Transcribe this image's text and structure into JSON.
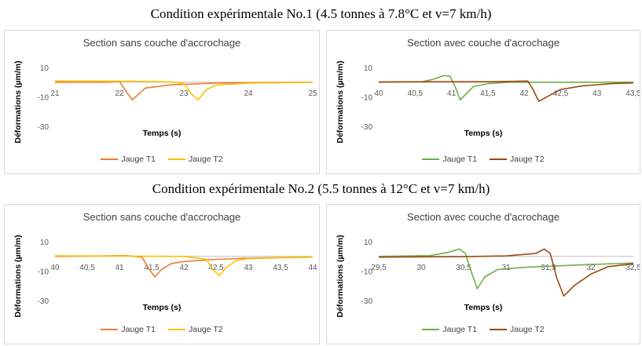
{
  "conditions": [
    {
      "title": "Condition expérimentale No.1 (4.5 tonnes à 7.8°C et v=7 km/h)"
    },
    {
      "title": "Condition expérimentale No.2 (5.5 tonnes à 12°C et v=7 km/h)"
    }
  ],
  "colors": {
    "orange": "#ed7d31",
    "yellow": "#ffc000",
    "green": "#70ad47",
    "brown": "#9e480e",
    "gray_line": "#c0c0c0"
  },
  "chart_data": [
    {
      "type": "line",
      "title": "Section sans couche d'accrochage",
      "xlabel": "Temps (s)",
      "ylabel": "Déformations (µm/m)",
      "xlim": [
        21,
        25
      ],
      "ylim": [
        -30,
        10
      ],
      "xticks": [
        "21",
        "22",
        "23",
        "24",
        "25"
      ],
      "yticks": [
        "10",
        "-10",
        "-30"
      ],
      "legend_position": "bottom",
      "series": [
        {
          "name": "Jauge T1",
          "color": "orange",
          "points": [
            [
              21,
              0
            ],
            [
              21.8,
              0
            ],
            [
              22.0,
              0.5
            ],
            [
              22.1,
              -6
            ],
            [
              22.2,
              -12
            ],
            [
              22.3,
              -8
            ],
            [
              22.4,
              -4
            ],
            [
              22.8,
              -1.8
            ],
            [
              23.5,
              -0.6
            ],
            [
              24.2,
              -0.3
            ],
            [
              25,
              0
            ]
          ]
        },
        {
          "name": "Jauge T2",
          "color": "yellow",
          "points": [
            [
              21,
              0.8
            ],
            [
              22.2,
              0.6
            ],
            [
              22.8,
              0.2
            ],
            [
              23.0,
              -1
            ],
            [
              23.12,
              -8
            ],
            [
              23.22,
              -12
            ],
            [
              23.35,
              -5
            ],
            [
              23.5,
              -2
            ],
            [
              24,
              -0.6
            ],
            [
              25,
              0
            ]
          ]
        }
      ]
    },
    {
      "type": "line",
      "title": "Section avec couche d'acrochage",
      "xlabel": "Temps (s)",
      "ylabel": "Déformations (µm/m)",
      "xlim": [
        40,
        43.5
      ],
      "ylim": [
        -30,
        10
      ],
      "xticks": [
        "40",
        "40,5",
        "41",
        "41,5",
        "42",
        "42,5",
        "43",
        "43,5"
      ],
      "yticks": [
        "10",
        "-10",
        "-30"
      ],
      "legend_position": "bottom",
      "series": [
        {
          "name": "Jauge T1",
          "color": "green",
          "points": [
            [
              40,
              0
            ],
            [
              40.6,
              0.3
            ],
            [
              40.75,
              2
            ],
            [
              40.9,
              4.5
            ],
            [
              40.98,
              4
            ],
            [
              41.05,
              -3
            ],
            [
              41.12,
              -12
            ],
            [
              41.2,
              -8
            ],
            [
              41.3,
              -3
            ],
            [
              41.5,
              -1
            ],
            [
              41.8,
              0
            ],
            [
              43.5,
              0
            ]
          ]
        },
        {
          "name": "Jauge T2",
          "color": "brown",
          "points": [
            [
              40,
              0.2
            ],
            [
              41.0,
              0.3
            ],
            [
              41.5,
              0.3
            ],
            [
              41.9,
              0.6
            ],
            [
              42.05,
              0.8
            ],
            [
              42.12,
              -5
            ],
            [
              42.2,
              -13
            ],
            [
              42.35,
              -9
            ],
            [
              42.5,
              -5
            ],
            [
              42.8,
              -2.5
            ],
            [
              43.2,
              -1
            ],
            [
              43.5,
              -0.5
            ]
          ]
        }
      ]
    },
    {
      "type": "line",
      "title": "Section sans couche d'accrochage",
      "xlabel": "Temps (s)",
      "ylabel": "Déformations (µm/m)",
      "xlim": [
        40,
        44
      ],
      "ylim": [
        -30,
        10
      ],
      "xticks": [
        "40",
        "40,5",
        "41",
        "41,5",
        "42",
        "42,5",
        "43",
        "43,5",
        "44"
      ],
      "yticks": [
        "10",
        "-10",
        "-30"
      ],
      "legend_position": "bottom",
      "series": [
        {
          "name": "Jauge T1",
          "color": "orange",
          "points": [
            [
              40,
              0
            ],
            [
              41.1,
              0.5
            ],
            [
              41.35,
              -0.5
            ],
            [
              41.45,
              -8
            ],
            [
              41.55,
              -14
            ],
            [
              41.65,
              -9
            ],
            [
              41.8,
              -5
            ],
            [
              42,
              -3.5
            ],
            [
              42.5,
              -2
            ],
            [
              43,
              -1.2
            ],
            [
              44,
              -0.5
            ]
          ]
        },
        {
          "name": "Jauge T2",
          "color": "yellow",
          "points": [
            [
              40,
              0.4
            ],
            [
              41,
              0.2
            ],
            [
              42,
              0
            ],
            [
              42.35,
              -2
            ],
            [
              42.45,
              -9
            ],
            [
              42.55,
              -13
            ],
            [
              42.65,
              -8
            ],
            [
              42.8,
              -3
            ],
            [
              43,
              -1.5
            ],
            [
              44,
              -0.5
            ]
          ]
        }
      ]
    },
    {
      "type": "line",
      "title": "Section avec couche d'acrochage",
      "xlabel": "Temps (s)",
      "ylabel": "Déformations (µm/m)",
      "xlim": [
        29.5,
        32.5
      ],
      "ylim": [
        -30,
        10
      ],
      "xticks": [
        "29,5",
        "30",
        "30,5",
        "31",
        "31,5",
        "32",
        "32,5"
      ],
      "yticks": [
        "10",
        "-10",
        "-30"
      ],
      "legend_position": "bottom",
      "series": [
        {
          "name": "Jauge T1",
          "color": "green",
          "points": [
            [
              29.5,
              0
            ],
            [
              30.1,
              0.5
            ],
            [
              30.3,
              2.5
            ],
            [
              30.45,
              5
            ],
            [
              30.52,
              2
            ],
            [
              30.6,
              -12
            ],
            [
              30.66,
              -22
            ],
            [
              30.75,
              -14
            ],
            [
              30.9,
              -9
            ],
            [
              31.2,
              -7.5
            ],
            [
              31.6,
              -6.5
            ],
            [
              32,
              -5.5
            ],
            [
              32.5,
              -4.5
            ]
          ]
        },
        {
          "name": "Jauge T2",
          "color": "brown",
          "points": [
            [
              29.5,
              -0.5
            ],
            [
              30.5,
              -0.2
            ],
            [
              31.0,
              0.3
            ],
            [
              31.35,
              2
            ],
            [
              31.45,
              5
            ],
            [
              31.52,
              2
            ],
            [
              31.6,
              -15
            ],
            [
              31.68,
              -27
            ],
            [
              31.8,
              -20
            ],
            [
              32,
              -12
            ],
            [
              32.2,
              -7
            ],
            [
              32.5,
              -5
            ]
          ]
        }
      ]
    }
  ]
}
